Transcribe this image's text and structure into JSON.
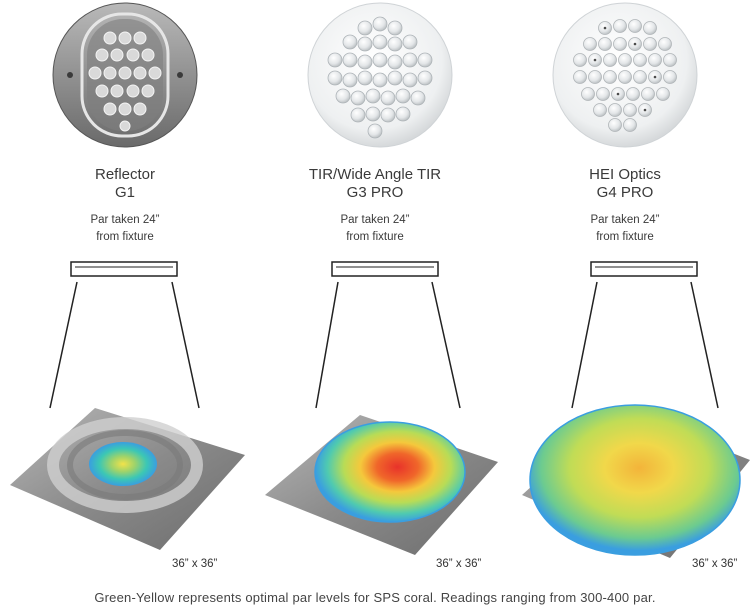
{
  "columns": [
    {
      "id": "reflector",
      "name": "Reflector",
      "model": "G1",
      "subtitle_line1": "Par taken 24”",
      "subtitle_line2": "from fixture",
      "dimension": "36” x 36”",
      "optic_icon": "reflector-optic-icon"
    },
    {
      "id": "tir",
      "name": "TIR/Wide Angle TIR",
      "model": "G3 PRO",
      "subtitle_line1": "Par taken 24”",
      "subtitle_line2": "from fixture",
      "dimension": "36” x 36”",
      "optic_icon": "tir-optic-icon"
    },
    {
      "id": "hei",
      "name": "HEI Optics",
      "model": "G4 PRO",
      "subtitle_line1": "Par taken 24”",
      "subtitle_line2": "from fixture",
      "dimension": "36” x 36”",
      "optic_icon": "hei-optic-icon"
    }
  ],
  "footnote": "Green-Yellow represents optimal par levels for SPS coral. Readings ranging from 300-400 par.",
  "colors": {
    "text": "#333333",
    "surface_gray": "#8f8f8f",
    "heat_red": "#e8322a",
    "heat_yellow": "#f2e640",
    "heat_green": "#8ccf6a",
    "heat_blue": "#4aa8e0"
  }
}
